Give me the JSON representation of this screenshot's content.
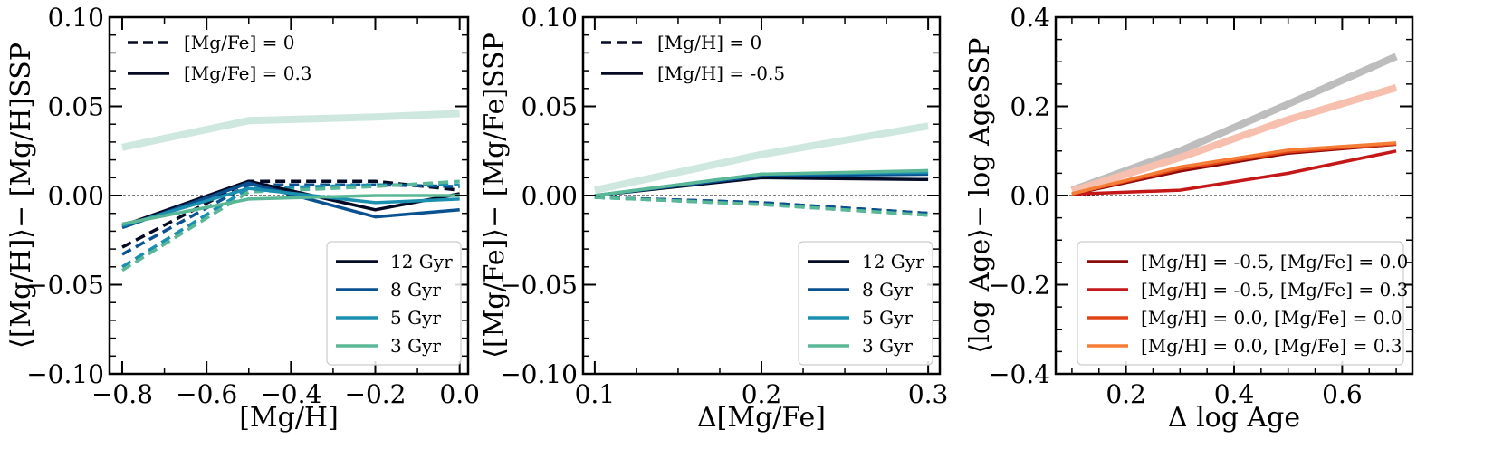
{
  "figure": {
    "width": 1660,
    "height": 517
  },
  "chart_data": [
    {
      "type": "line",
      "xlabel": "[Mg/H]",
      "ylabel": "⟨[Mg/H]⟩− [Mg/H]SSP",
      "xlim": [
        -0.83,
        0.02
      ],
      "ylim": [
        -0.1,
        0.1
      ],
      "xticks": [
        -0.8,
        -0.6,
        -0.4,
        -0.2,
        0.0
      ],
      "xtick_labels": [
        "−0.8",
        "−0.6",
        "−0.4",
        "−0.2",
        "0.0"
      ],
      "yticks": [
        -0.1,
        -0.05,
        0.0,
        0.05,
        0.1
      ],
      "ytick_labels": [
        "−0.10",
        "−0.05",
        "0.00",
        "0.05",
        "0.10"
      ],
      "xminor": [
        -0.7,
        -0.5,
        -0.3,
        -0.1
      ],
      "yminor": [
        -0.09,
        -0.08,
        -0.07,
        -0.06,
        -0.04,
        -0.03,
        -0.02,
        -0.01,
        0.01,
        0.02,
        0.03,
        0.04,
        0.06,
        0.07,
        0.08,
        0.09
      ],
      "hline": 0,
      "legend_style": {
        "position": "top-left",
        "entries": [
          {
            "label": "[Mg/Fe] = 0",
            "dash": true
          },
          {
            "label": "[Mg/Fe] = 0.3",
            "dash": false
          }
        ]
      },
      "legend_color": {
        "position": "bottom-right",
        "entries": [
          {
            "label": "12 Gyr",
            "color": "#050a24"
          },
          {
            "label": "8 Gyr",
            "color": "#0a5191"
          },
          {
            "label": "5 Gyr",
            "color": "#1a8fb0"
          },
          {
            "label": "3 Gyr",
            "color": "#5ab896"
          }
        ]
      },
      "series": [
        {
          "name": "pale",
          "color": "#cfe8df",
          "width": 8,
          "dash": false,
          "x": [
            -0.8,
            -0.5,
            -0.2,
            0.0
          ],
          "y": [
            0.027,
            0.042,
            0.044,
            0.046
          ]
        },
        {
          "name": "12 Gyr, [Mg/Fe] = 0",
          "color": "#050a24",
          "width": 3.5,
          "dash": true,
          "x": [
            -0.8,
            -0.5,
            -0.2,
            0.0
          ],
          "y": [
            -0.029,
            0.008,
            0.008,
            0.003
          ]
        },
        {
          "name": "8 Gyr, [Mg/Fe] = 0",
          "color": "#0a5191",
          "width": 3.5,
          "dash": true,
          "x": [
            -0.8,
            -0.5,
            -0.2,
            0.0
          ],
          "y": [
            -0.033,
            0.006,
            0.006,
            0.005
          ]
        },
        {
          "name": "5 Gyr, [Mg/Fe] = 0",
          "color": "#1a8fb0",
          "width": 3.5,
          "dash": true,
          "x": [
            -0.8,
            -0.5,
            -0.2,
            0.0
          ],
          "y": [
            -0.04,
            0.004,
            0.006,
            0.006
          ]
        },
        {
          "name": "3 Gyr, [Mg/Fe] = 0",
          "color": "#5ab896",
          "width": 3.5,
          "dash": true,
          "x": [
            -0.8,
            -0.5,
            -0.2,
            0.0
          ],
          "y": [
            -0.042,
            0.002,
            0.005,
            0.008
          ]
        },
        {
          "name": "12 Gyr, [Mg/Fe] = 0.3",
          "color": "#050a24",
          "width": 3.5,
          "dash": false,
          "x": [
            -0.8,
            -0.5,
            -0.2,
            0.0
          ],
          "y": [
            -0.017,
            0.008,
            -0.008,
            0.001
          ]
        },
        {
          "name": "8 Gyr, [Mg/Fe] = 0.3",
          "color": "#0a5191",
          "width": 3.5,
          "dash": false,
          "x": [
            -0.8,
            -0.5,
            -0.2,
            0.0
          ],
          "y": [
            -0.018,
            0.007,
            -0.012,
            -0.008
          ]
        },
        {
          "name": "5 Gyr, [Mg/Fe] = 0.3",
          "color": "#1a8fb0",
          "width": 3.5,
          "dash": false,
          "x": [
            -0.8,
            -0.5,
            -0.2,
            0.0
          ],
          "y": [
            -0.017,
            0.004,
            -0.004,
            -0.002
          ]
        },
        {
          "name": "3 Gyr, [Mg/Fe] = 0.3",
          "color": "#5ab896",
          "width": 3.5,
          "dash": false,
          "x": [
            -0.8,
            -0.5,
            -0.2,
            0.0
          ],
          "y": [
            -0.016,
            -0.002,
            0.0,
            0.0
          ]
        }
      ]
    },
    {
      "type": "line",
      "xlabel": "Δ[Mg/Fe]",
      "ylabel": "⟨[Mg/Fe]⟩− [Mg/Fe]SSP",
      "xlim": [
        0.093,
        0.307
      ],
      "ylim": [
        -0.1,
        0.1
      ],
      "xticks": [
        0.1,
        0.2,
        0.3
      ],
      "xtick_labels": [
        "0.1",
        "0.2",
        "0.3"
      ],
      "yticks": [
        -0.1,
        -0.05,
        0.0,
        0.05,
        0.1
      ],
      "ytick_labels": [
        "−0.10",
        "−0.05",
        "0.00",
        "0.05",
        "0.10"
      ],
      "xminor": [
        0.125,
        0.15,
        0.175,
        0.225,
        0.25,
        0.275
      ],
      "yminor": [
        -0.09,
        -0.08,
        -0.07,
        -0.06,
        -0.04,
        -0.03,
        -0.02,
        -0.01,
        0.01,
        0.02,
        0.03,
        0.04,
        0.06,
        0.07,
        0.08,
        0.09
      ],
      "hline": 0,
      "legend_style": {
        "position": "top-left",
        "entries": [
          {
            "label": "[Mg/H] = 0",
            "dash": true
          },
          {
            "label": "[Mg/H] = -0.5",
            "dash": false
          }
        ]
      },
      "legend_color": {
        "position": "bottom-right",
        "entries": [
          {
            "label": "12 Gyr",
            "color": "#050a24"
          },
          {
            "label": "8 Gyr",
            "color": "#0a5191"
          },
          {
            "label": "5 Gyr",
            "color": "#1a8fb0"
          },
          {
            "label": "3 Gyr",
            "color": "#5ab896"
          }
        ]
      },
      "series": [
        {
          "name": "pale",
          "color": "#cfe8df",
          "width": 8,
          "dash": false,
          "x": [
            0.1,
            0.2,
            0.3
          ],
          "y": [
            0.003,
            0.023,
            0.039
          ]
        },
        {
          "name": "12 Gyr, [Mg/H] = 0",
          "color": "#050a24",
          "width": 3.5,
          "dash": true,
          "x": [
            0.1,
            0.2,
            0.3
          ],
          "y": [
            -0.001,
            -0.004,
            -0.01
          ]
        },
        {
          "name": "8 Gyr, [Mg/H] = 0",
          "color": "#0a5191",
          "width": 3.5,
          "dash": true,
          "x": [
            0.1,
            0.2,
            0.3
          ],
          "y": [
            -0.001,
            -0.004,
            -0.01
          ]
        },
        {
          "name": "5 Gyr, [Mg/H] = 0",
          "color": "#1a8fb0",
          "width": 3.5,
          "dash": true,
          "x": [
            0.1,
            0.2,
            0.3
          ],
          "y": [
            -0.001,
            -0.005,
            -0.011
          ]
        },
        {
          "name": "3 Gyr, [Mg/H] = 0",
          "color": "#5ab896",
          "width": 3.5,
          "dash": true,
          "x": [
            0.1,
            0.2,
            0.3
          ],
          "y": [
            -0.001,
            -0.005,
            -0.011
          ]
        },
        {
          "name": "12 Gyr, [Mg/H] = -0.5",
          "color": "#050a24",
          "width": 3.5,
          "dash": false,
          "x": [
            0.1,
            0.2,
            0.3
          ],
          "y": [
            0.0,
            0.01,
            0.009
          ]
        },
        {
          "name": "8 Gyr, [Mg/H] = -0.5",
          "color": "#0a5191",
          "width": 3.5,
          "dash": false,
          "x": [
            0.1,
            0.2,
            0.3
          ],
          "y": [
            0.0,
            0.011,
            0.012
          ]
        },
        {
          "name": "5 Gyr, [Mg/H] = -0.5",
          "color": "#1a8fb0",
          "width": 3.5,
          "dash": false,
          "x": [
            0.1,
            0.2,
            0.3
          ],
          "y": [
            0.0,
            0.012,
            0.013
          ]
        },
        {
          "name": "3 Gyr, [Mg/H] = -0.5",
          "color": "#5ab896",
          "width": 3.5,
          "dash": false,
          "x": [
            0.1,
            0.2,
            0.3
          ],
          "y": [
            0.0,
            0.012,
            0.014
          ]
        }
      ]
    },
    {
      "type": "line",
      "xlabel": "Δ log Age",
      "ylabel": "⟨log Age⟩− log AgeSSP",
      "xlim": [
        0.07,
        0.73
      ],
      "ylim": [
        -0.4,
        0.4
      ],
      "xticks": [
        0.2,
        0.4,
        0.6
      ],
      "xtick_labels": [
        "0.2",
        "0.4",
        "0.6"
      ],
      "yticks": [
        -0.4,
        -0.2,
        0.0,
        0.2,
        0.4
      ],
      "ytick_labels": [
        "−0.4",
        "−0.2",
        "0.0",
        "0.2",
        "0.4"
      ],
      "xminor": [
        0.1,
        0.15,
        0.25,
        0.3,
        0.35,
        0.45,
        0.5,
        0.55,
        0.65,
        0.7
      ],
      "yminor": [
        -0.35,
        -0.3,
        -0.25,
        -0.15,
        -0.1,
        -0.05,
        0.05,
        0.1,
        0.15,
        0.25,
        0.3,
        0.35
      ],
      "hline": 0,
      "legend_color": {
        "position": "bottom-center",
        "entries": [
          {
            "label": "[Mg/H] = -0.5, [Mg/Fe] = 0.0",
            "color": "#8c0a0a"
          },
          {
            "label": "[Mg/H] = -0.5, [Mg/Fe] = 0.3",
            "color": "#c41717"
          },
          {
            "label": "[Mg/H] = 0.0, [Mg/Fe] = 0.0",
            "color": "#e04416"
          },
          {
            "label": "[Mg/H] = 0.0, [Mg/Fe] = 0.3",
            "color": "#f57d36"
          }
        ]
      },
      "series": [
        {
          "name": "gray",
          "color": "#bdbdbd",
          "width": 8,
          "dash": false,
          "x": [
            0.1,
            0.3,
            0.5,
            0.7
          ],
          "y": [
            0.012,
            0.1,
            0.205,
            0.312
          ]
        },
        {
          "name": "pink",
          "color": "#f7bfae",
          "width": 8,
          "dash": false,
          "x": [
            0.1,
            0.3,
            0.5,
            0.7
          ],
          "y": [
            0.01,
            0.085,
            0.17,
            0.242
          ]
        },
        {
          "name": "[Mg/H] = -0.5, [Mg/Fe] = 0.0",
          "color": "#8c0a0a",
          "width": 3.5,
          "dash": false,
          "x": [
            0.1,
            0.3,
            0.5,
            0.7
          ],
          "y": [
            0.003,
            0.055,
            0.095,
            0.115
          ]
        },
        {
          "name": "[Mg/H] = -0.5, [Mg/Fe] = 0.3",
          "color": "#c41717",
          "width": 3.5,
          "dash": false,
          "x": [
            0.1,
            0.3,
            0.5,
            0.7
          ],
          "y": [
            0.003,
            0.012,
            0.05,
            0.1
          ]
        },
        {
          "name": "[Mg/H] = 0.0, [Mg/Fe] = 0.0",
          "color": "#e04416",
          "width": 3.5,
          "dash": false,
          "x": [
            0.1,
            0.3,
            0.5,
            0.7
          ],
          "y": [
            0.004,
            0.06,
            0.098,
            0.116
          ]
        },
        {
          "name": "[Mg/H] = 0.0, [Mg/Fe] = 0.3",
          "color": "#f57d36",
          "width": 3.5,
          "dash": false,
          "x": [
            0.1,
            0.3,
            0.5,
            0.7
          ],
          "y": [
            0.004,
            0.064,
            0.102,
            0.118
          ]
        }
      ]
    }
  ]
}
